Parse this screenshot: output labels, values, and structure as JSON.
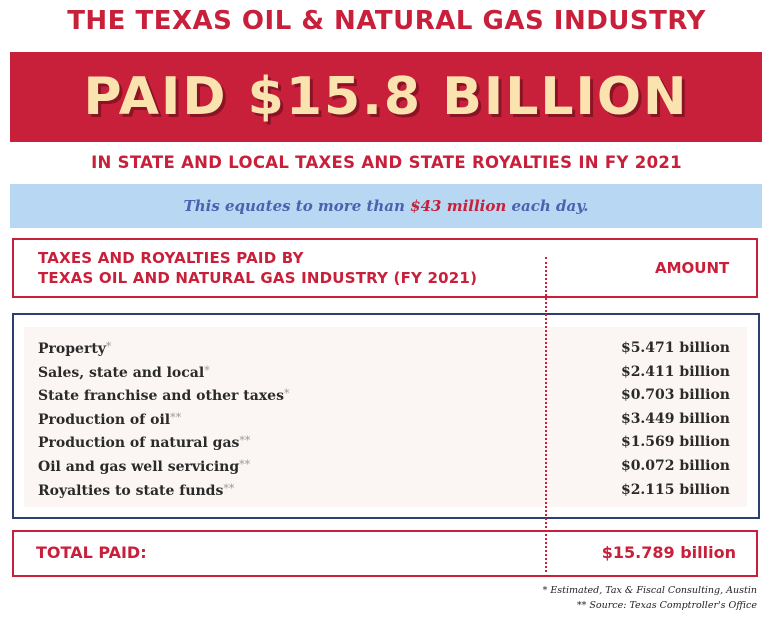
{
  "header": {
    "title": "THE TEXAS OIL & NATURAL GAS INDUSTRY",
    "banner": "PAID $15.8 BILLION",
    "subtitle": "IN STATE AND LOCAL TAXES AND STATE ROYALTIES IN FY 2021"
  },
  "equates": {
    "prefix": "This equates to more than ",
    "highlight": "$43 million",
    "suffix": " each day."
  },
  "table": {
    "label_line1": "TAXES AND ROYALTIES PAID BY",
    "label_line2": "TEXAS OIL AND NATURAL GAS INDUSTRY (FY 2021)",
    "amount_header": "AMOUNT",
    "rows": [
      {
        "label": "Property",
        "mark": "*",
        "value": "$5.471 billion"
      },
      {
        "label": "Sales, state and local",
        "mark": "*",
        "value": "$2.411 billion"
      },
      {
        "label": "State franchise and other taxes",
        "mark": "*",
        "value": "$0.703 billion"
      },
      {
        "label": "Production of oil",
        "mark": "**",
        "value": "$3.449 billion"
      },
      {
        "label": "Production of natural gas",
        "mark": "**",
        "value": "$1.569 billion"
      },
      {
        "label": "Oil and gas well servicing",
        "mark": "**",
        "value": "$0.072 billion"
      },
      {
        "label": "Royalties to state funds",
        "mark": "**",
        "value": "$2.115 billion"
      }
    ],
    "total_label": "TOTAL PAID:",
    "total_value": "$15.789 billion"
  },
  "footnotes": {
    "note1": "* Estimated, Tax & Fiscal Consulting, Austin",
    "note2": "** Source: Texas Comptroller's Office"
  },
  "colors": {
    "brand_red": "#c8203a",
    "banner_text": "#fbe3b0",
    "equates_background": "#b7d7f2",
    "equates_text": "#4b62b0",
    "navy_border": "#2b3f73"
  }
}
